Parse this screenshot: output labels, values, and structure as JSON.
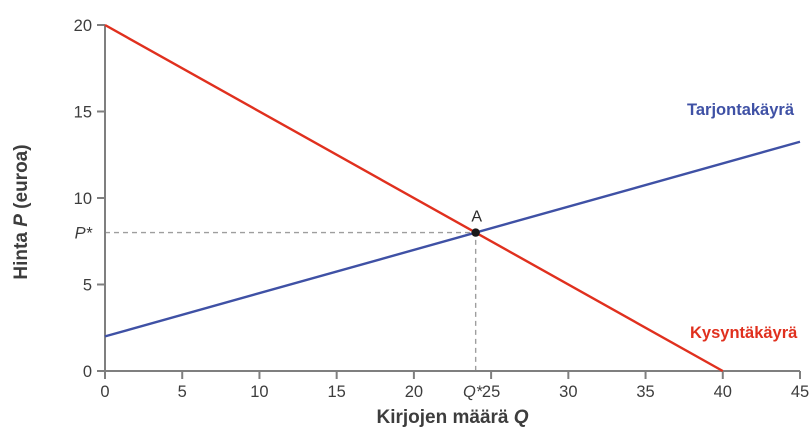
{
  "figure": {
    "equilibrium_point_label": "A",
    "p_star_label": "P*",
    "q_star_label": "Q*"
  },
  "chart_data": {
    "type": "line",
    "title": "",
    "xlabel": "Kirjojen määrä Q",
    "xlabel_parts": {
      "pre": "Kirjojen määrä ",
      "var": "Q"
    },
    "ylabel": "Hinta P (euroa)",
    "ylabel_parts": {
      "pre": "Hinta ",
      "var": "P",
      "post": " (euroa)"
    },
    "xlim": [
      0,
      45
    ],
    "ylim": [
      0,
      20
    ],
    "x_ticks": [
      0,
      5,
      10,
      15,
      20,
      25,
      30,
      35,
      40,
      45
    ],
    "y_ticks": [
      0,
      5,
      10,
      15,
      20
    ],
    "grid": false,
    "legend_position": "labels-near-line-ends",
    "series": [
      {
        "name": "Kysyntäkäyrä",
        "role": "demand",
        "color": "#e0301e",
        "points": [
          [
            0,
            20
          ],
          [
            40,
            0
          ]
        ]
      },
      {
        "name": "Tarjontakäyrä",
        "role": "supply",
        "color": "#3f51a5",
        "points": [
          [
            0,
            2
          ],
          [
            45,
            13.25
          ]
        ]
      }
    ],
    "equilibrium": {
      "label": "A",
      "Q": 24,
      "P": 8
    },
    "axis_color": "#7f7f7f",
    "tick_text_color": "#3d3d3d",
    "dash_color": "#9e9e9e",
    "point_color": "#1a1a1a"
  }
}
